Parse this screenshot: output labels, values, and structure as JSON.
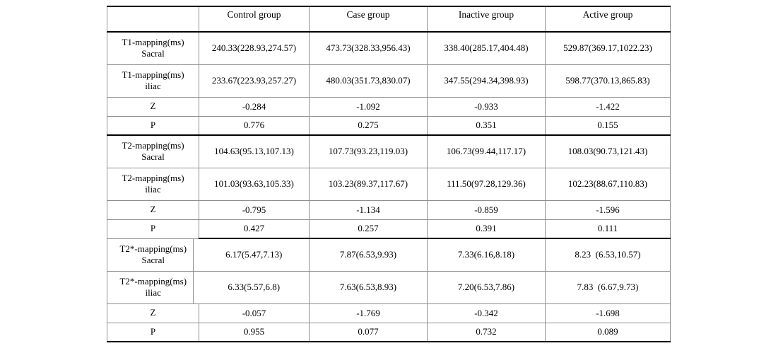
{
  "chart_data": {
    "type": "table",
    "columns": [
      "",
      "Control group",
      "Case group",
      "Inactive group",
      "Active group"
    ],
    "rows": [
      {
        "label": "T1-mapping(ms)\nSacral",
        "values": [
          "240.33(228.93,274.57)",
          "473.73(328.33,956.43)",
          "338.40(285.17,404.48)",
          "529.87(369.17,1022.23)"
        ]
      },
      {
        "label": "T1-mapping(ms)\niliac",
        "values": [
          "233.67(223.93,257.27)",
          "480.03(351.73,830.07)",
          "347.55(294.34,398.93)",
          "598.77(370.13,865.83)"
        ]
      },
      {
        "label": "Z",
        "values": [
          "-0.284",
          "-1.092",
          "-0.933",
          "-1.422"
        ]
      },
      {
        "label": "P",
        "values": [
          "0.776",
          "0.275",
          "0.351",
          "0.155"
        ]
      },
      {
        "label": "T2-mapping(ms)\nSacral",
        "values": [
          "104.63(95.13,107.13)",
          "107.73(93.23,119.03)",
          "106.73(99.44,117.17)",
          "108.03(90.73,121.43)"
        ]
      },
      {
        "label": "T2-mapping(ms)\niliac",
        "values": [
          "101.03(93.63,105.33)",
          "103.23(89.37,117.67)",
          "111.50(97.28,129.36)",
          "102.23(88.67,110.83)"
        ]
      },
      {
        "label": "Z",
        "values": [
          "-0.795",
          "-1.134",
          "-0.859",
          "-1.596"
        ]
      },
      {
        "label": "P",
        "values": [
          "0.427",
          "0.257",
          "0.391",
          "0.111"
        ]
      },
      {
        "label": "T2*-mapping(ms)\nSacral",
        "values": [
          "6.17(5.47,7.13)",
          "7.87(6.53,9.93)",
          "7.33(6.16,8.18)",
          "8.23  (6.53,10.57)"
        ]
      },
      {
        "label": "T2*-mapping(ms)\niliac",
        "values": [
          "6.33(5.57,6.8)",
          "7.63(6.53,8.93)",
          "7.20(6.53,7.86)",
          "7.83  (6.67,9.73)"
        ]
      },
      {
        "label": "Z",
        "values": [
          "-0.057",
          "-1.769",
          "-0.342",
          "-1.698"
        ]
      },
      {
        "label": "P",
        "values": [
          "0.955",
          "0.077",
          "0.732",
          "0.089"
        ]
      }
    ],
    "layout": {
      "grid_color": "#8f8f8f",
      "section_rule_color": "#000000",
      "sections_start_at_rows": [
        0,
        4,
        8
      ]
    }
  }
}
